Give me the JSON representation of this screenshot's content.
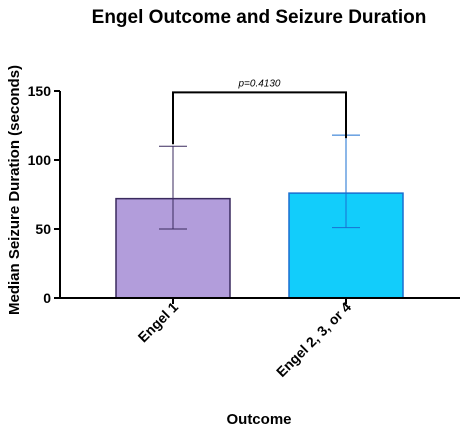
{
  "chart_data": {
    "type": "bar",
    "title": "Engel Outcome and Seizure Duration",
    "xlabel": "Outcome",
    "ylabel": "Median Seizure Duration (seconds)",
    "ylim": [
      0,
      150
    ],
    "yticks": [
      0,
      50,
      100,
      150
    ],
    "categories": [
      "Engel 1",
      "Engel 2, 3, or 4"
    ],
    "values": [
      72,
      76
    ],
    "error_low": [
      50,
      51
    ],
    "error_high": [
      110,
      118
    ],
    "colors": {
      "fill": [
        "#b29ddb",
        "#12cdfb"
      ],
      "stroke": [
        "#3a2a5e",
        "#1a6fd0"
      ]
    },
    "grid": false,
    "annotation": {
      "text": "p=0.4130",
      "bracket_y": 149
    }
  }
}
